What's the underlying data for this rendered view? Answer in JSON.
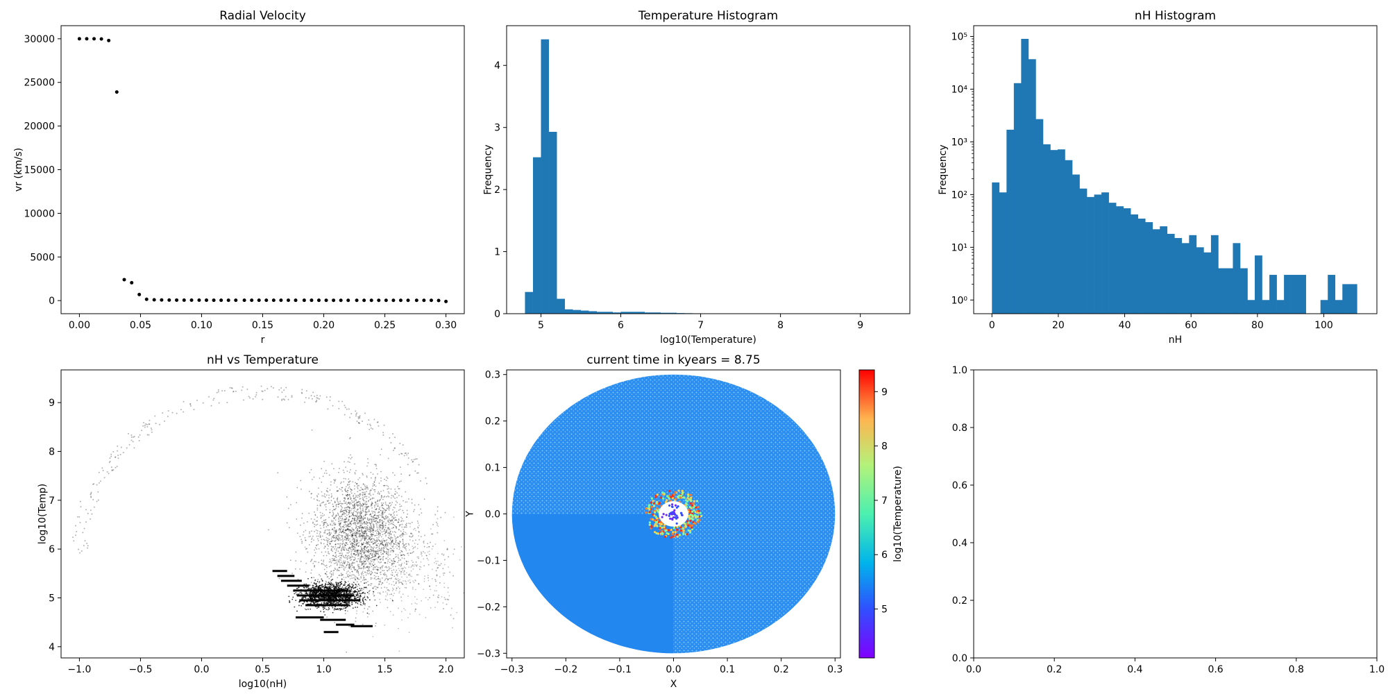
{
  "chart_data": [
    {
      "type": "scatter",
      "title": "Radial Velocity",
      "xlabel": "r",
      "ylabel": "vr (km/s)",
      "xlim": [
        -0.015,
        0.315
      ],
      "ylim": [
        -1500,
        31500
      ],
      "xticks": [
        0.0,
        0.05,
        0.1,
        0.15,
        0.2,
        0.25,
        0.3
      ],
      "xtick_labels": [
        "0.00",
        "0.05",
        "0.10",
        "0.15",
        "0.20",
        "0.25",
        "0.30"
      ],
      "yticks": [
        0,
        5000,
        10000,
        15000,
        20000,
        25000,
        30000
      ],
      "ytick_labels": [
        "0",
        "5000",
        "10000",
        "15000",
        "20000",
        "25000",
        "30000"
      ],
      "marker_color": "#000000",
      "points": [
        [
          0.0,
          30000
        ],
        [
          0.006,
          30000
        ],
        [
          0.012,
          30000
        ],
        [
          0.018,
          29980
        ],
        [
          0.024,
          29800
        ],
        [
          0.0306,
          23900
        ],
        [
          0.0367,
          2400
        ],
        [
          0.0428,
          2050
        ],
        [
          0.049,
          700
        ],
        [
          0.055,
          150
        ],
        [
          0.0612,
          90
        ],
        [
          0.0673,
          70
        ],
        [
          0.0735,
          60
        ],
        [
          0.0796,
          55
        ],
        [
          0.0857,
          50
        ],
        [
          0.0918,
          50
        ],
        [
          0.098,
          48
        ],
        [
          0.104,
          46
        ],
        [
          0.11,
          45
        ],
        [
          0.116,
          44
        ],
        [
          0.122,
          43
        ],
        [
          0.128,
          42
        ],
        [
          0.135,
          42
        ],
        [
          0.141,
          41
        ],
        [
          0.147,
          40
        ],
        [
          0.153,
          40
        ],
        [
          0.159,
          39
        ],
        [
          0.165,
          38
        ],
        [
          0.171,
          38
        ],
        [
          0.177,
          37
        ],
        [
          0.184,
          37
        ],
        [
          0.19,
          36
        ],
        [
          0.196,
          36
        ],
        [
          0.202,
          35
        ],
        [
          0.208,
          35
        ],
        [
          0.214,
          34
        ],
        [
          0.22,
          34
        ],
        [
          0.227,
          33
        ],
        [
          0.233,
          33
        ],
        [
          0.239,
          32
        ],
        [
          0.245,
          32
        ],
        [
          0.251,
          31
        ],
        [
          0.257,
          31
        ],
        [
          0.263,
          30
        ],
        [
          0.269,
          30
        ],
        [
          0.276,
          29
        ],
        [
          0.282,
          29
        ],
        [
          0.288,
          28
        ],
        [
          0.294,
          10
        ],
        [
          0.3,
          -100
        ]
      ]
    },
    {
      "type": "bar",
      "title": "Temperature Histogram",
      "xlabel": "log10(Temperature)",
      "ylabel": "Frequency",
      "xlim": [
        4.57,
        9.62
      ],
      "ylim": [
        0,
        4.64
      ],
      "xticks": [
        5,
        6,
        7,
        8,
        9
      ],
      "xtick_labels": [
        "5",
        "6",
        "7",
        "8",
        "9"
      ],
      "yticks": [
        0,
        1,
        2,
        3,
        4
      ],
      "ytick_labels": [
        "0",
        "1",
        "2",
        "3",
        "4"
      ],
      "bar_color": "#1f77b4",
      "bin_start": 4.8,
      "bin_width": 0.1,
      "values": [
        0.35,
        2.52,
        4.42,
        2.93,
        0.24,
        0.07,
        0.06,
        0.05,
        0.04,
        0.03,
        0.03,
        0.02,
        0.03,
        0.03,
        0.03,
        0.02,
        0.02,
        0.015,
        0.015,
        0.01,
        0.008,
        0.006,
        0.005,
        0.004,
        0.003,
        0.003,
        0.002,
        0.002,
        0.002,
        0.001,
        0.001,
        0.001,
        0.001,
        0.001,
        0.001,
        0.001,
        0.001,
        0.001,
        0.001,
        0.001,
        0.001,
        0.001,
        0.001,
        0.001,
        0.001,
        0.001
      ]
    },
    {
      "type": "bar",
      "title": "nH Histogram",
      "xlabel": "nH",
      "ylabel": "Frequency",
      "yscale": "log",
      "xlim": [
        -5.5,
        116.0
      ],
      "ylim": [
        0.55,
        160000
      ],
      "xticks": [
        0,
        20,
        40,
        60,
        80,
        100
      ],
      "xtick_labels": [
        "0",
        "20",
        "40",
        "60",
        "80",
        "100"
      ],
      "ytick_values": [
        1,
        10,
        100,
        1000,
        10000,
        100000
      ],
      "ytick_labels": [
        "10⁰",
        "10¹",
        "10²",
        "10³",
        "10⁴",
        "10⁵"
      ],
      "bar_color": "#1f77b4",
      "bin_start": 0,
      "bin_width": 2.2,
      "values": [
        170,
        110,
        1700,
        13000,
        90000,
        37000,
        2700,
        900,
        700,
        720,
        450,
        240,
        130,
        90,
        100,
        110,
        70,
        60,
        55,
        42,
        35,
        30,
        22,
        25,
        18,
        15,
        12,
        17,
        10,
        8,
        17,
        4,
        4,
        12,
        4,
        1,
        7,
        1,
        3,
        1,
        3,
        3,
        3,
        0,
        0,
        1,
        3,
        1,
        2,
        2
      ]
    },
    {
      "type": "scatter",
      "title": "nH vs Temperature",
      "xlabel": "log10(nH)",
      "ylabel": "log10(Temp)",
      "xlim": [
        -1.15,
        2.15
      ],
      "ylim": [
        3.77,
        9.67
      ],
      "xticks": [
        -1.0,
        -0.5,
        0.0,
        0.5,
        1.0,
        1.5,
        2.0
      ],
      "xtick_labels": [
        "−1.0",
        "−0.5",
        "0.0",
        "0.5",
        "1.0",
        "1.5",
        "2.0"
      ],
      "yticks": [
        4,
        5,
        6,
        7,
        8,
        9
      ],
      "ytick_labels": [
        "4",
        "5",
        "6",
        "7",
        "8",
        "9"
      ],
      "marker_color": "#000000",
      "clusters": [
        {
          "cx": 1.3,
          "cy": 6.3,
          "sx": 0.2,
          "sy": 0.6,
          "n": 2600,
          "alpha": 0.35
        },
        {
          "cx": 1.05,
          "cy": 5.05,
          "sx": 0.12,
          "sy": 0.12,
          "n": 1400,
          "alpha": 0.8
        },
        {
          "cx": 1.6,
          "cy": 5.6,
          "sx": 0.25,
          "sy": 0.5,
          "n": 400,
          "alpha": 0.25
        }
      ],
      "streaks": [
        {
          "x0": 0.58,
          "x1": 0.7,
          "y": 5.55
        },
        {
          "x0": 0.62,
          "x1": 0.76,
          "y": 5.45
        },
        {
          "x0": 0.65,
          "x1": 0.82,
          "y": 5.35
        },
        {
          "x0": 0.7,
          "x1": 0.88,
          "y": 5.25
        },
        {
          "x0": 0.75,
          "x1": 1.2,
          "y": 5.15
        },
        {
          "x0": 0.78,
          "x1": 1.25,
          "y": 5.05
        },
        {
          "x0": 0.8,
          "x1": 1.3,
          "y": 4.95
        },
        {
          "x0": 0.85,
          "x1": 1.2,
          "y": 4.85
        },
        {
          "x0": 0.77,
          "x1": 1.0,
          "y": 4.6
        },
        {
          "x0": 0.97,
          "x1": 1.18,
          "y": 4.55
        },
        {
          "x0": 1.1,
          "x1": 1.25,
          "y": 4.45
        },
        {
          "x0": 1.22,
          "x1": 1.4,
          "y": 4.42
        },
        {
          "x0": 1.0,
          "x1": 1.12,
          "y": 4.3
        }
      ],
      "arc": {
        "x0": -1.0,
        "y0": 7.1,
        "peak_x": 0.5,
        "peak_y": 9.38,
        "n": 300
      }
    },
    {
      "type": "scatter",
      "title": "current time in kyears = 8.75",
      "xlabel": "X",
      "ylabel": "Y",
      "xlim": [
        -0.31,
        0.31
      ],
      "ylim": [
        -0.31,
        0.31
      ],
      "xticks": [
        -0.3,
        -0.2,
        -0.1,
        0.0,
        0.1,
        0.2,
        0.3
      ],
      "xtick_labels": [
        "−0.3",
        "−0.2",
        "−0.1",
        "0.0",
        "0.1",
        "0.2",
        "0.3"
      ],
      "yticks": [
        -0.3,
        -0.2,
        -0.1,
        0.0,
        0.1,
        0.2,
        0.3
      ],
      "ytick_labels": [
        "−0.3",
        "−0.2",
        "−0.1",
        "0.0",
        "0.1",
        "0.2",
        "0.3"
      ],
      "disk_radius": 0.3,
      "colormap": "rainbow",
      "colorbar": {
        "label": "log10(Temperature)",
        "range": [
          4.1,
          9.4
        ],
        "ticks": [
          5,
          6,
          7,
          8,
          9
        ],
        "tick_labels": [
          "5",
          "6",
          "7",
          "8",
          "9"
        ]
      },
      "core_radius": 0.05
    },
    {
      "type": "scatter",
      "title": "",
      "xlim": [
        0,
        1
      ],
      "ylim": [
        0,
        1
      ],
      "xticks": [
        0,
        0.2,
        0.4,
        0.6,
        0.8,
        1.0
      ],
      "xtick_labels": [
        "0.0",
        "0.2",
        "0.4",
        "0.6",
        "0.8",
        "1.0"
      ],
      "yticks": [
        0,
        0.2,
        0.4,
        0.6,
        0.8,
        1.0
      ],
      "ytick_labels": [
        "0.0",
        "0.2",
        "0.4",
        "0.6",
        "0.8",
        "1.0"
      ]
    }
  ]
}
